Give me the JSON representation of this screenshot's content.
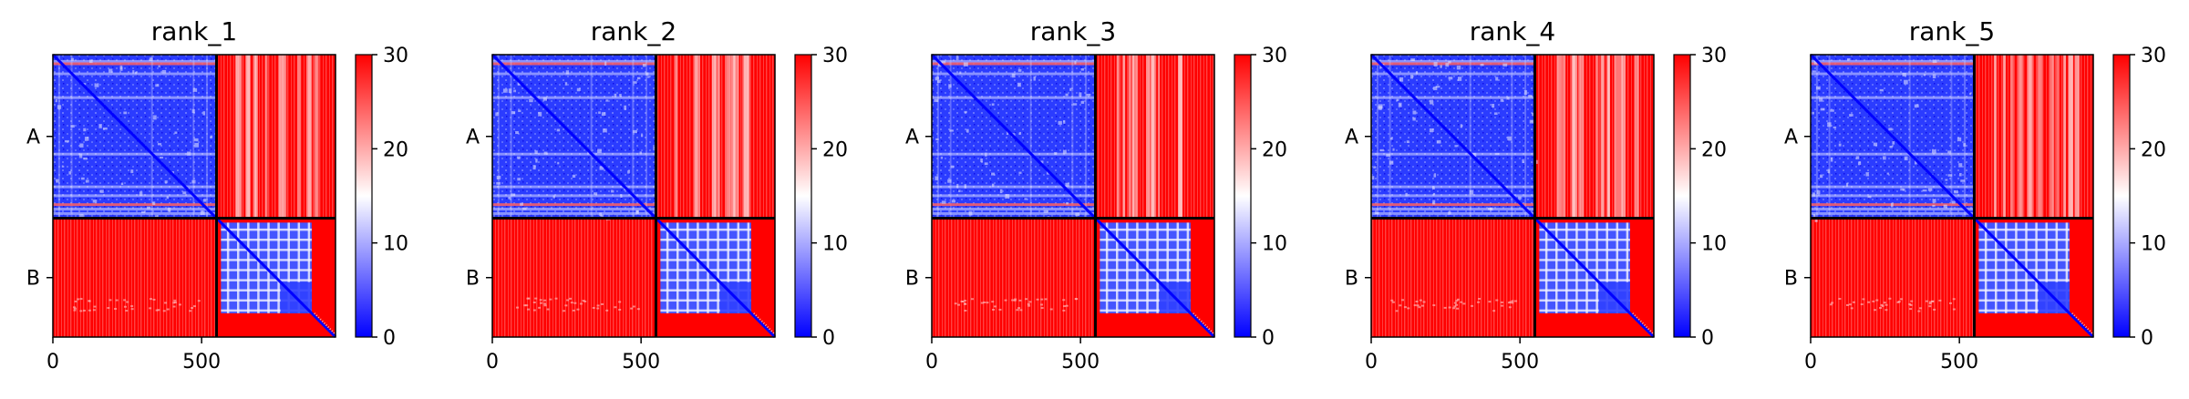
{
  "chart_data": [
    {
      "type": "heatmap",
      "title": "rank_1",
      "x_ticks": [
        0,
        500
      ],
      "y_tick_labels": [
        "A",
        "B"
      ],
      "matrix_size": 950,
      "chain_boundary": 550,
      "colorbar": {
        "min": 0,
        "max": 30,
        "ticks": [
          0,
          10,
          20,
          30
        ],
        "colors": [
          "#0000ff",
          "#ffffff",
          "#ff0000"
        ]
      }
    },
    {
      "type": "heatmap",
      "title": "rank_2",
      "x_ticks": [
        0,
        500
      ],
      "y_tick_labels": [
        "A",
        "B"
      ],
      "matrix_size": 950,
      "chain_boundary": 550,
      "colorbar": {
        "min": 0,
        "max": 30,
        "ticks": [
          0,
          10,
          20,
          30
        ],
        "colors": [
          "#0000ff",
          "#ffffff",
          "#ff0000"
        ]
      }
    },
    {
      "type": "heatmap",
      "title": "rank_3",
      "x_ticks": [
        0,
        500
      ],
      "y_tick_labels": [
        "A",
        "B"
      ],
      "matrix_size": 950,
      "chain_boundary": 550,
      "colorbar": {
        "min": 0,
        "max": 30,
        "ticks": [
          0,
          10,
          20,
          30
        ],
        "colors": [
          "#0000ff",
          "#ffffff",
          "#ff0000"
        ]
      }
    },
    {
      "type": "heatmap",
      "title": "rank_4",
      "x_ticks": [
        0,
        500
      ],
      "y_tick_labels": [
        "A",
        "B"
      ],
      "matrix_size": 950,
      "chain_boundary": 550,
      "colorbar": {
        "min": 0,
        "max": 30,
        "ticks": [
          0,
          10,
          20,
          30
        ],
        "colors": [
          "#0000ff",
          "#ffffff",
          "#ff0000"
        ]
      }
    },
    {
      "type": "heatmap",
      "title": "rank_5",
      "x_ticks": [
        0,
        500
      ],
      "y_tick_labels": [
        "A",
        "B"
      ],
      "matrix_size": 950,
      "chain_boundary": 550,
      "colorbar": {
        "min": 0,
        "max": 30,
        "ticks": [
          0,
          10,
          20,
          30
        ],
        "colors": [
          "#0000ff",
          "#ffffff",
          "#ff0000"
        ]
      }
    }
  ]
}
